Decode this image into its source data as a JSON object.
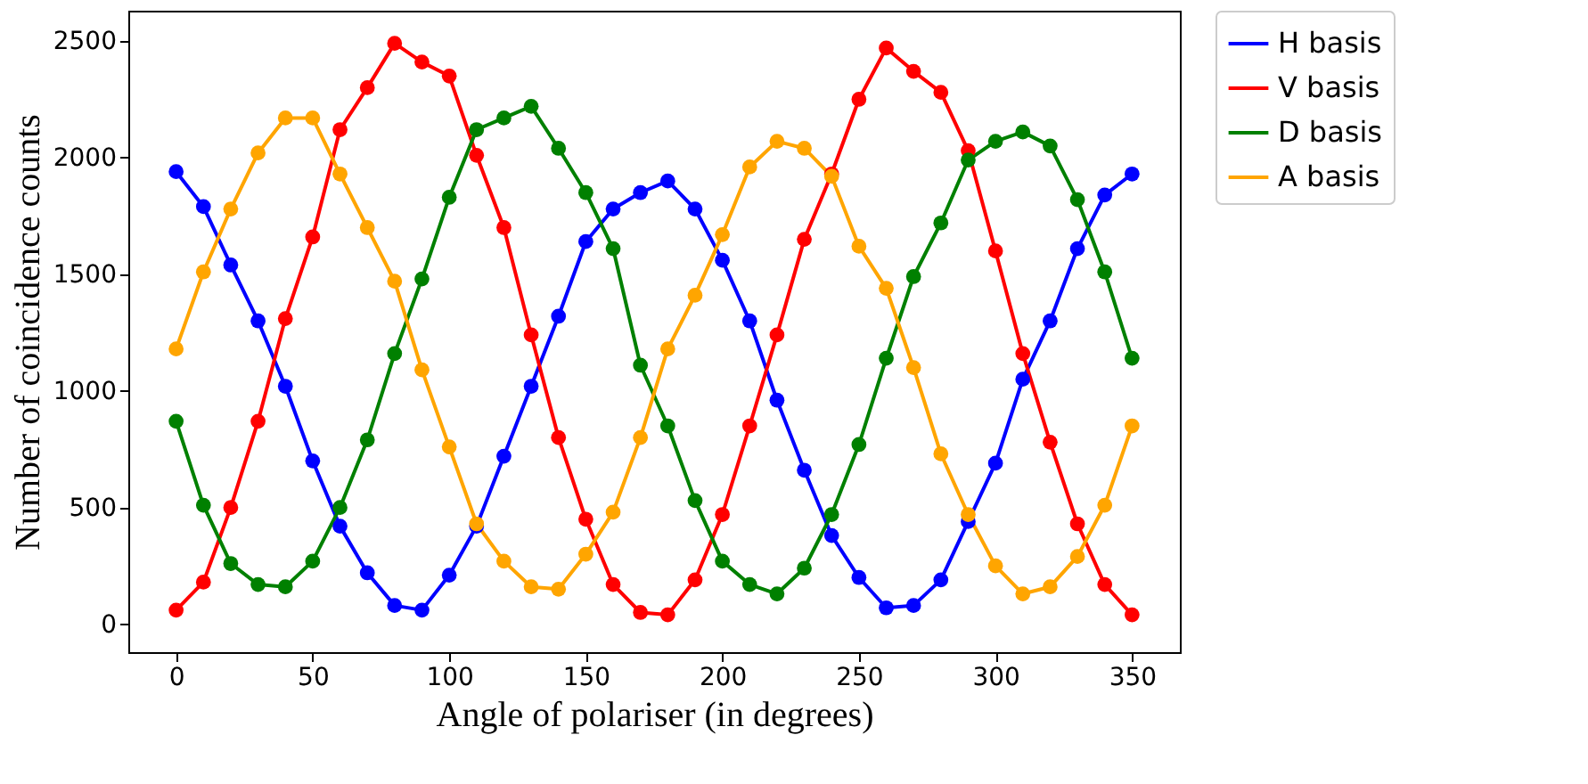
{
  "chart_data": {
    "type": "line",
    "xlabel": "Angle of polariser (in degrees)",
    "ylabel": "Number of coincidence counts",
    "x": [
      0,
      10,
      20,
      30,
      40,
      50,
      60,
      70,
      80,
      90,
      100,
      110,
      120,
      130,
      140,
      150,
      160,
      170,
      180,
      190,
      200,
      210,
      220,
      230,
      240,
      250,
      260,
      270,
      280,
      290,
      300,
      310,
      320,
      330,
      340,
      350
    ],
    "series": [
      {
        "name": "H basis",
        "color": "#0000ff",
        "values": [
          1940,
          1790,
          1540,
          1300,
          1020,
          700,
          420,
          220,
          80,
          60,
          210,
          420,
          720,
          1020,
          1320,
          1640,
          1780,
          1850,
          1900,
          1780,
          1560,
          1300,
          960,
          660,
          380,
          200,
          70,
          80,
          190,
          440,
          690,
          1050,
          1300,
          1610,
          1840,
          1930
        ]
      },
      {
        "name": "V basis",
        "color": "#ff0000",
        "values": [
          60,
          180,
          500,
          870,
          1310,
          1660,
          2120,
          2300,
          2490,
          2410,
          2350,
          2010,
          1700,
          1240,
          800,
          450,
          170,
          50,
          40,
          190,
          470,
          850,
          1240,
          1650,
          1930,
          2250,
          2470,
          2370,
          2280,
          2030,
          1600,
          1160,
          780,
          430,
          170,
          40
        ]
      },
      {
        "name": "D basis",
        "color": "#008000",
        "values": [
          870,
          510,
          260,
          170,
          160,
          270,
          500,
          790,
          1160,
          1480,
          1830,
          2120,
          2170,
          2220,
          2040,
          1850,
          1610,
          1110,
          850,
          530,
          270,
          170,
          130,
          240,
          470,
          770,
          1140,
          1490,
          1720,
          1990,
          2070,
          2110,
          2050,
          1820,
          1510,
          1140
        ]
      },
      {
        "name": "A basis",
        "color": "#ffa500",
        "values": [
          1180,
          1510,
          1780,
          2020,
          2170,
          2170,
          1930,
          1700,
          1470,
          1090,
          760,
          430,
          270,
          160,
          150,
          300,
          480,
          800,
          1180,
          1410,
          1670,
          1960,
          2070,
          2040,
          1920,
          1620,
          1440,
          1100,
          730,
          470,
          250,
          130,
          160,
          290,
          510,
          850
        ]
      }
    ],
    "xlim": [
      -17.5,
      367.5
    ],
    "xticks": [
      0,
      50,
      100,
      150,
      200,
      250,
      300,
      350
    ],
    "ylim": [
      -120,
      2630
    ],
    "yticks": [
      0,
      500,
      1000,
      1500,
      2000,
      2500
    ],
    "grid": false,
    "legend": "top right",
    "marker": "circle",
    "line_style": "solid"
  }
}
